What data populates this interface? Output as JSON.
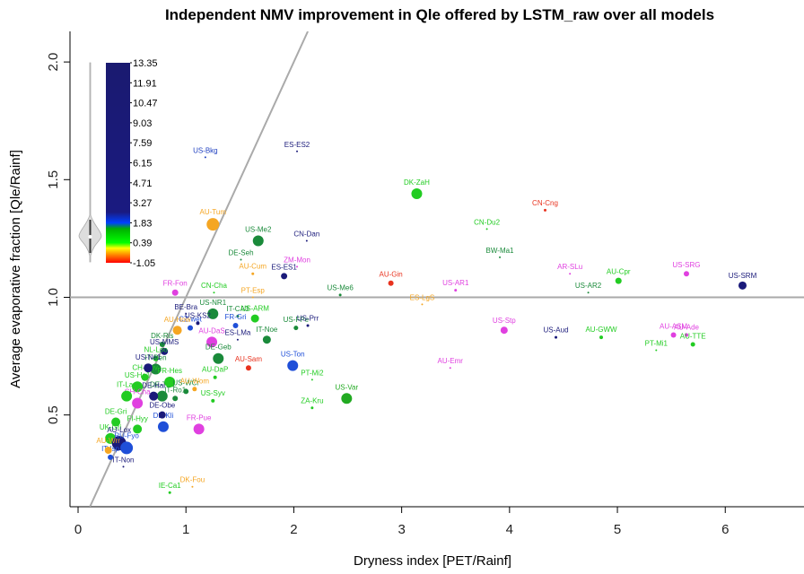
{
  "chart_data": {
    "type": "scatter",
    "title": "Independent NMV improvement in Qle offered by LSTM_raw over all models",
    "x_label": "Dryness index [PET/Rainf]",
    "y_label": "Average evaporative fraction [Qle/Rainf]",
    "xlim": [
      -0.075,
      6.73
    ],
    "ylim": [
      0.11,
      2.13
    ],
    "xticks": [
      0,
      1,
      2,
      3,
      4,
      5,
      6
    ],
    "yticks": [
      0.5,
      {
        "value": 1,
        "label": "1.0"
      },
      1.5,
      {
        "value": 2,
        "label": "2.0"
      }
    ],
    "hline": 1,
    "one_to_one_line": true,
    "line_color": "#aaaaaa",
    "labels": [
      "US-Bkg",
      "ES-ES2",
      "DK-ZaH",
      "CN-Cng",
      "CN-Du2",
      "AU-Tum",
      "US-Me2",
      "CN-Dan",
      "DE-Seh",
      "BW-Ma1",
      "AU-Cum",
      "ZM-Mon",
      "ES-ES1",
      "AU-Gin",
      "US-AR1",
      "AR-SLu",
      "AU-Cpr",
      "US-SRG",
      "US-SRM",
      "US-AR2",
      "US-Me6",
      "ES-LgS",
      "US-Stp",
      "US-Aud",
      "AU-GWW",
      "AU-ASM",
      "AU-Ade",
      "PT-Mi1",
      "AU-TTE",
      "AU-Emr",
      "AU-Sam",
      "US-Ton",
      "PT-Mi2",
      "ZA-Kru",
      "US-Var",
      "DK-Fou",
      "IE-Ca1",
      "FR-Pue",
      "PT-Esp",
      "CN-Cha",
      "US-NR1",
      "IT-CA3",
      "US-ARM",
      "FR-Gri",
      "IT-Noe",
      "US-FPe",
      "US-Prr",
      "ES-LMa",
      "AU-DaS",
      "DE-Geb",
      "CZ-wet",
      "US-KS2",
      "AU-DaP",
      "US-Syv",
      "FR-Fon",
      "BE-Bra",
      "AU-How",
      "DK-Ris",
      "US-MMS",
      "NL-Loo",
      "IT-Ren",
      "CH-Dav",
      "DE-Tha",
      "DE-Hai",
      "FR-Hes",
      "US-WCr",
      "AU-Wom",
      "IT-Ro1",
      "DE-Kli",
      "DE-Obe",
      "US-Ha1",
      "CH-Cha",
      "IT-Lav",
      "DE-Gri",
      "UK-Gri",
      "AU-Lox",
      "RU-Fyo",
      "IT-Isp",
      "IT-Non",
      "AU-Wrr",
      "FI-Hyy",
      "US-Ne1"
    ],
    "x": [
      1.18,
      2.03,
      3.14,
      4.33,
      3.79,
      1.25,
      1.67,
      2.12,
      1.51,
      3.91,
      1.62,
      2.03,
      1.91,
      2.9,
      3.5,
      4.56,
      5.01,
      5.64,
      6.16,
      4.73,
      2.43,
      3.19,
      3.95,
      4.43,
      4.85,
      5.52,
      5.64,
      5.36,
      5.7,
      3.45,
      1.58,
      1.99,
      2.17,
      2.17,
      2.49,
      1.06,
      0.85,
      1.12,
      1.62,
      1.26,
      1.25,
      1.48,
      1.64,
      1.46,
      1.75,
      2.02,
      2.13,
      1.48,
      1.24,
      1.3,
      1.04,
      1.11,
      1.27,
      1.25,
      0.9,
      1.0,
      0.92,
      0.78,
      0.8,
      0.72,
      0.72,
      0.62,
      0.78,
      0.7,
      0.85,
      1.0,
      1.08,
      0.9,
      0.79,
      0.78,
      0.55,
      0.55,
      0.45,
      0.35,
      0.3,
      0.38,
      0.45,
      0.3,
      0.42,
      0.28,
      0.55,
      0.65
    ],
    "y": [
      1.595,
      1.62,
      1.44,
      1.37,
      1.29,
      1.31,
      1.24,
      1.24,
      1.16,
      1.17,
      1.1,
      1.13,
      1.09,
      1.06,
      1.03,
      1.1,
      1.07,
      1.1,
      1.05,
      1.02,
      1.01,
      0.97,
      0.86,
      0.83,
      0.83,
      0.84,
      0.84,
      0.775,
      0.8,
      0.7,
      0.7,
      0.71,
      0.65,
      0.53,
      0.57,
      0.195,
      0.17,
      0.44,
      1.0,
      1.02,
      0.93,
      0.92,
      0.91,
      0.88,
      0.82,
      0.87,
      0.88,
      0.82,
      0.81,
      0.74,
      0.87,
      0.89,
      0.66,
      0.56,
      1.02,
      0.93,
      0.86,
      0.8,
      0.77,
      0.74,
      0.695,
      0.66,
      0.58,
      0.58,
      0.64,
      0.6,
      0.61,
      0.57,
      0.45,
      0.5,
      0.62,
      0.55,
      0.58,
      0.47,
      0.4,
      0.38,
      0.36,
      0.32,
      0.28,
      0.35,
      0.44,
      0.7
    ],
    "colors": [
      "#2040c0",
      "#1a1a7a",
      "#22cc22",
      "#e8321e",
      "#22cc22",
      "#f5a623",
      "#1a8a3a",
      "#1a1a7a",
      "#1a8a3a",
      "#1a8a3a",
      "#f5a623",
      "#e040e0",
      "#1a1a7a",
      "#e8321e",
      "#e040e0",
      "#e040e0",
      "#22cc22",
      "#e040e0",
      "#1a1a7a",
      "#1a8a3a",
      "#1a8a3a",
      "#f5a623",
      "#e040e0",
      "#1a1a7a",
      "#22cc22",
      "#e040e0",
      "#e040e0",
      "#22cc22",
      "#22cc22",
      "#e040e0",
      "#e8321e",
      "#1f4fd8",
      "#22cc22",
      "#22cc22",
      "#22aa22",
      "#f5a623",
      "#22cc22",
      "#e040e0",
      "#f5a623",
      "#22cc22",
      "#1a8a3a",
      "#1a8a3a",
      "#22cc22",
      "#1f4fd8",
      "#1a8a3a",
      "#1a8a3a",
      "#1a1a7a",
      "#1a1a7a",
      "#e040e0",
      "#1a8a3a",
      "#1f4fd8",
      "#1a1a7a",
      "#22cc22",
      "#22cc22",
      "#e040e0",
      "#1a1a7a",
      "#f5a623",
      "#1a8a3a",
      "#1a1a7a",
      "#22cc22",
      "#1a8a3a",
      "#22cc22",
      "#1a8a3a",
      "#1a1a7a",
      "#22cc22",
      "#1a8a3a",
      "#f5a623",
      "#1a8a3a",
      "#1f4fd8",
      "#1a1a7a",
      "#22cc22",
      "#e040e0",
      "#22cc22",
      "#22cc22",
      "#22cc22",
      "#1a1a7a",
      "#1f4fd8",
      "#1f4fd8",
      "#1a1a7a",
      "#f5a623",
      "#22cc22",
      "#1a1a7a"
    ],
    "sizes": [
      1,
      1,
      6,
      1.5,
      1,
      7,
      6,
      1,
      1,
      1,
      1.5,
      1,
      3.5,
      3,
      1.5,
      1,
      3.5,
      3,
      4.5,
      1,
      1.5,
      1,
      4,
      1.5,
      2,
      3,
      2,
      1,
      2.5,
      1,
      3,
      6,
      1,
      1.5,
      6,
      1,
      1.5,
      6,
      1,
      1,
      6,
      1.5,
      4.5,
      3,
      4.5,
      2.5,
      1.5,
      1,
      6,
      6,
      3,
      2,
      2,
      2,
      3.5,
      1,
      5,
      3,
      4,
      3,
      6,
      4,
      6,
      5,
      6,
      3,
      2.5,
      3,
      6,
      4,
      6,
      6,
      6,
      5,
      6,
      8,
      7,
      3,
      1,
      4,
      5,
      5
    ],
    "colorbar": {
      "lim": [
        -1.05,
        13.35
      ],
      "ticks": [
        13.35,
        11.91,
        10.47,
        9.03,
        7.59,
        6.15,
        4.71,
        3.27,
        1.83,
        0.39,
        -1.05
      ],
      "stops": [
        {
          "value": -1.05,
          "color": "#ff0000"
        },
        {
          "value": -0.5,
          "color": "#ff8000"
        },
        {
          "value": 0,
          "color": "#ffff00"
        },
        {
          "value": 0.39,
          "color": "#00ff00"
        },
        {
          "value": 1.4,
          "color": "#00b000"
        },
        {
          "value": 1.83,
          "color": "#0040ff"
        },
        {
          "value": 2.6,
          "color": "#1a1a80"
        },
        {
          "value": 13.35,
          "color": "#1a1a70"
        }
      ]
    }
  }
}
